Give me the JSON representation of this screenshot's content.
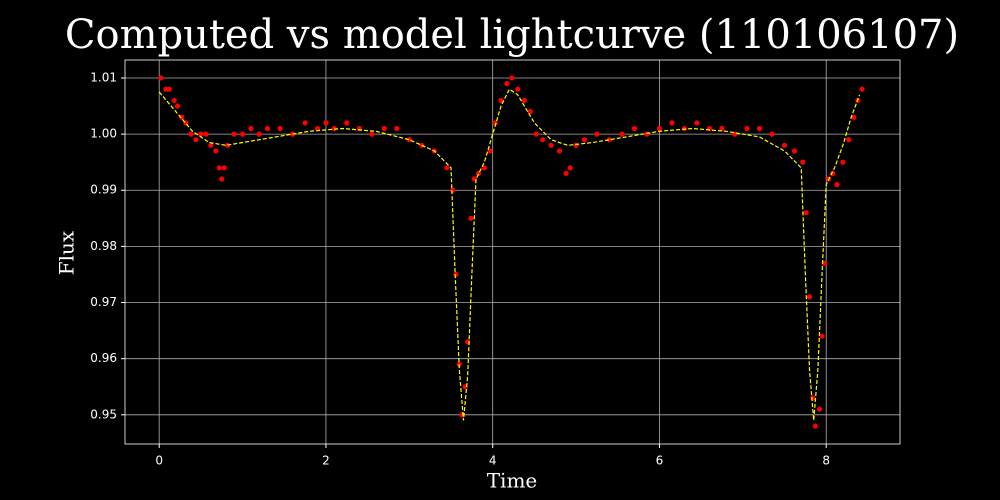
{
  "chart_data": {
    "type": "scatter",
    "title": "Computed vs model lightcurve (110106107)",
    "x_label": "Time",
    "y_label": "Flux",
    "xlim": [
      -0.41,
      8.885
    ],
    "ylim": [
      0.9448,
      1.0132
    ],
    "xticks": [
      0,
      2,
      4,
      6,
      8
    ],
    "yticks": [
      0.95,
      0.96,
      0.97,
      0.98,
      0.99,
      {
        "value": 1,
        "label": "1.00"
      },
      1.01
    ],
    "grid": true,
    "series": [
      {
        "type": "scatter",
        "color": "#ff0000",
        "x": [
          0.02,
          0.08,
          0.12,
          0.18,
          0.22,
          0.27,
          0.32,
          0.38,
          0.44,
          0.5,
          0.56,
          0.62,
          0.68,
          0.72,
          0.75,
          0.78,
          0.82,
          0.9,
          1.0,
          1.1,
          1.2,
          1.3,
          1.45,
          1.6,
          1.75,
          1.9,
          2.0,
          2.1,
          2.25,
          2.4,
          2.55,
          2.7,
          2.85,
          3.0,
          3.15,
          3.3,
          3.45,
          3.52,
          3.56,
          3.6,
          3.63,
          3.67,
          3.7,
          3.74,
          3.78,
          3.83,
          3.9,
          3.97,
          4.03,
          4.1,
          4.17,
          4.23,
          4.3,
          4.38,
          4.45,
          4.52,
          4.6,
          4.7,
          4.8,
          4.88,
          4.93,
          5.0,
          5.1,
          5.25,
          5.4,
          5.55,
          5.7,
          5.85,
          6.0,
          6.15,
          6.3,
          6.45,
          6.6,
          6.75,
          6.9,
          7.05,
          7.2,
          7.35,
          7.5,
          7.62,
          7.72,
          7.76,
          7.8,
          7.84,
          7.87,
          7.92,
          7.95,
          7.98,
          8.03,
          8.08,
          8.13,
          8.2,
          8.27,
          8.33,
          8.38,
          8.43
        ],
        "y": [
          1.01,
          1.008,
          1.008,
          1.006,
          1.005,
          1.003,
          1.002,
          1.0,
          0.999,
          1.0,
          1.0,
          0.998,
          0.997,
          0.994,
          0.992,
          0.994,
          0.998,
          1.0,
          1.0,
          1.001,
          1.0,
          1.001,
          1.001,
          1.0,
          1.002,
          1.001,
          1.002,
          1.001,
          1.002,
          1.001,
          1.0,
          1.001,
          1.001,
          0.999,
          0.998,
          0.997,
          0.994,
          0.99,
          0.975,
          0.959,
          0.95,
          0.955,
          0.963,
          0.985,
          0.992,
          0.993,
          0.994,
          0.997,
          1.002,
          1.006,
          1.009,
          1.01,
          1.008,
          1.006,
          1.004,
          1.0,
          0.999,
          0.998,
          0.997,
          0.993,
          0.994,
          0.998,
          0.999,
          1.0,
          0.999,
          1.0,
          1.001,
          1.0,
          1.001,
          1.002,
          1.001,
          1.002,
          1.001,
          1.001,
          1.0,
          1.001,
          1.001,
          1.0,
          0.998,
          0.997,
          0.995,
          0.986,
          0.971,
          0.953,
          0.948,
          0.951,
          0.964,
          0.977,
          0.992,
          0.993,
          0.991,
          0.995,
          0.999,
          1.003,
          1.006,
          1.008
        ]
      },
      {
        "type": "line",
        "color": "#ffff00",
        "x": [
          0,
          0.2,
          0.4,
          0.6,
          0.8,
          1.0,
          1.4,
          1.8,
          2.2,
          2.6,
          3.0,
          3.3,
          3.5,
          3.55,
          3.6,
          3.65,
          3.7,
          3.75,
          3.8,
          3.9,
          4.0,
          4.1,
          4.2,
          4.3,
          4.5,
          4.7,
          4.9,
          5.2,
          5.6,
          6.0,
          6.4,
          6.8,
          7.2,
          7.5,
          7.7,
          7.75,
          7.8,
          7.85,
          7.9,
          7.95,
          8.0,
          8.1,
          8.2,
          8.3,
          8.4
        ],
        "y": [
          1.0075,
          1.004,
          1.0005,
          0.9985,
          0.998,
          0.9985,
          0.9995,
          1.0005,
          1.001,
          1.0005,
          0.999,
          0.997,
          0.994,
          0.975,
          0.958,
          0.949,
          0.957,
          0.975,
          0.992,
          0.995,
          1.0,
          1.005,
          1.008,
          1.007,
          1.002,
          0.999,
          0.998,
          0.9985,
          0.9995,
          1.0005,
          1.001,
          1.0005,
          0.9995,
          0.997,
          0.994,
          0.975,
          0.958,
          0.949,
          0.958,
          0.975,
          0.991,
          0.994,
          0.998,
          1.003,
          1.007
        ]
      }
    ]
  }
}
